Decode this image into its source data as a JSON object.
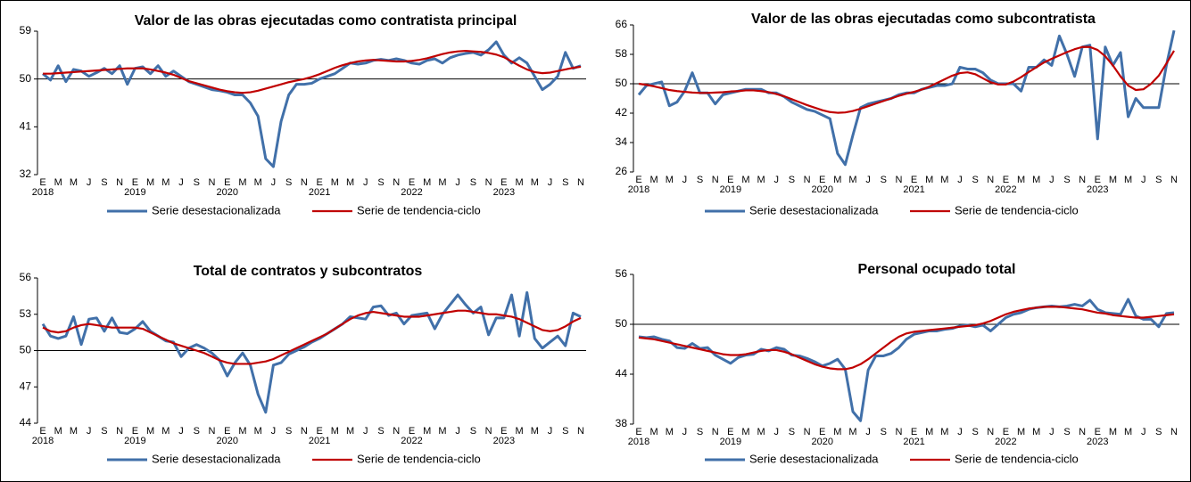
{
  "chart_data": [
    {
      "type": "line",
      "title": "Valor de las obras ejecutadas como contratista principal",
      "categories": [
        "E",
        null,
        "M",
        null,
        "M",
        null,
        "J",
        null,
        "S",
        null,
        "N",
        null,
        "E",
        null,
        "M",
        null,
        "M",
        null,
        "J",
        null,
        "S",
        null,
        "N",
        null,
        "E",
        null,
        "M",
        null,
        "M",
        null,
        "J",
        null,
        "S",
        null,
        "N",
        null,
        "E",
        null,
        "M",
        null,
        "M",
        null,
        "J",
        null,
        "S",
        null,
        "N",
        null,
        "E",
        null,
        "M",
        null,
        "M",
        null,
        "J",
        null,
        "S",
        null,
        "N",
        null,
        "E",
        null,
        "M",
        null,
        "M",
        null,
        "J",
        null,
        "S",
        null,
        "N"
      ],
      "years": [
        "2018",
        "2019",
        "2020",
        "2021",
        "2022",
        "2023"
      ],
      "ylim": [
        32,
        59
      ],
      "yticks": [
        32,
        41,
        50,
        59
      ],
      "baseline": 50,
      "series": [
        {
          "name": "Serie desestacionalizada",
          "color": "#4170A9",
          "values": [
            51,
            49.8,
            52.5,
            49.5,
            51.8,
            51.5,
            50.5,
            51.2,
            52,
            51,
            52.5,
            49,
            52,
            52.3,
            51,
            52.5,
            50.5,
            51.5,
            50.5,
            49.5,
            49,
            48.5,
            48,
            47.8,
            47.5,
            47,
            47,
            45.5,
            43,
            35,
            33.5,
            42,
            47,
            49,
            49,
            49.2,
            50,
            50.5,
            51,
            52,
            53,
            52.8,
            53,
            53.5,
            53.7,
            53.5,
            53.8,
            53.5,
            53,
            52.8,
            53.5,
            53.8,
            53,
            54,
            54.5,
            54.8,
            55,
            54.5,
            55.5,
            57,
            54.5,
            53,
            54,
            53,
            50.5,
            48,
            49,
            50.5,
            55,
            52,
            52.5
          ]
        },
        {
          "name": "Serie de tendencia-ciclo",
          "color": "#C00000",
          "values": [
            51,
            51,
            51.1,
            51.2,
            51.3,
            51.4,
            51.5,
            51.6,
            51.7,
            51.8,
            51.9,
            52,
            52,
            52,
            51.8,
            51.5,
            51.2,
            50.8,
            50.2,
            49.6,
            49.2,
            48.8,
            48.4,
            48,
            47.7,
            47.5,
            47.4,
            47.5,
            47.8,
            48.2,
            48.6,
            49,
            49.4,
            49.7,
            50,
            50.4,
            50.9,
            51.5,
            52.1,
            52.6,
            53,
            53.3,
            53.5,
            53.6,
            53.5,
            53.4,
            53.3,
            53.3,
            53.4,
            53.6,
            53.9,
            54.3,
            54.7,
            55,
            55.2,
            55.3,
            55.2,
            55.1,
            54.9,
            54.6,
            54.1,
            53.3,
            52.5,
            51.8,
            51.3,
            51.1,
            51.2,
            51.5,
            51.8,
            52.1,
            52.3
          ]
        }
      ]
    },
    {
      "type": "line",
      "title": "Valor de las obras ejecutadas como subcontratista",
      "categories": [
        "E",
        null,
        "M",
        null,
        "M",
        null,
        "J",
        null,
        "S",
        null,
        "N",
        null,
        "E",
        null,
        "M",
        null,
        "M",
        null,
        "J",
        null,
        "S",
        null,
        "N",
        null,
        "E",
        null,
        "M",
        null,
        "M",
        null,
        "J",
        null,
        "S",
        null,
        "N",
        null,
        "E",
        null,
        "M",
        null,
        "M",
        null,
        "J",
        null,
        "S",
        null,
        "N",
        null,
        "E",
        null,
        "M",
        null,
        "M",
        null,
        "J",
        null,
        "S",
        null,
        "N",
        null,
        "E",
        null,
        "M",
        null,
        "M",
        null,
        "J",
        null,
        "S",
        null,
        "N"
      ],
      "years": [
        "2018",
        "2019",
        "2020",
        "2021",
        "2022",
        "2023"
      ],
      "ylim": [
        26,
        66
      ],
      "yticks": [
        26,
        34,
        42,
        50,
        58,
        66
      ],
      "baseline": 50,
      "series": [
        {
          "name": "Serie desestacionalizada",
          "color": "#4170A9",
          "values": [
            47,
            49.5,
            50,
            50.5,
            44,
            45,
            48,
            53,
            47.5,
            47.5,
            44.5,
            47,
            47.5,
            48,
            48.5,
            48.5,
            48.5,
            47.5,
            47.5,
            46.5,
            45,
            44,
            43,
            42.5,
            41.5,
            40.5,
            31,
            28,
            36,
            43.5,
            44.5,
            45,
            45.5,
            46,
            47,
            47.5,
            47.5,
            48.5,
            49,
            49.5,
            49.5,
            50,
            54.5,
            54,
            54,
            53,
            51,
            50,
            50,
            50,
            48,
            54.5,
            54.5,
            56.5,
            55,
            63,
            58,
            52,
            60,
            60.5,
            35,
            60,
            55,
            58.5,
            41,
            46,
            43.5,
            43.5,
            43.5,
            55,
            64.5
          ]
        },
        {
          "name": "Serie de tendencia-ciclo",
          "color": "#C00000",
          "values": [
            50,
            49.7,
            49.3,
            48.8,
            48.3,
            48,
            47.8,
            47.6,
            47.5,
            47.5,
            47.6,
            47.7,
            47.9,
            48,
            48.2,
            48.2,
            48,
            47.7,
            47.2,
            46.6,
            45.8,
            45,
            44.2,
            43.5,
            42.8,
            42.3,
            42.1,
            42.2,
            42.6,
            43.2,
            43.9,
            44.6,
            45.3,
            46,
            46.7,
            47.3,
            47.8,
            48.4,
            49.2,
            50.2,
            51.2,
            52.2,
            52.9,
            53.1,
            52.6,
            51.5,
            50.4,
            49.8,
            49.8,
            50.6,
            51.8,
            53.2,
            54.5,
            55.8,
            56.8,
            57.7,
            58.6,
            59.4,
            60,
            60,
            59.2,
            57.5,
            55,
            52,
            49.5,
            48.3,
            48.5,
            50,
            52.2,
            55.5,
            59
          ]
        }
      ]
    },
    {
      "type": "line",
      "title": "Total de contratos y subcontratos",
      "categories": [
        "E",
        null,
        "M",
        null,
        "M",
        null,
        "J",
        null,
        "S",
        null,
        "N",
        null,
        "E",
        null,
        "M",
        null,
        "M",
        null,
        "J",
        null,
        "S",
        null,
        "N",
        null,
        "E",
        null,
        "M",
        null,
        "M",
        null,
        "J",
        null,
        "S",
        null,
        "N",
        null,
        "E",
        null,
        "M",
        null,
        "M",
        null,
        "J",
        null,
        "S",
        null,
        "N",
        null,
        "E",
        null,
        "M",
        null,
        "M",
        null,
        "J",
        null,
        "S",
        null,
        "N",
        null,
        "E",
        null,
        "M",
        null,
        "M",
        null,
        "J",
        null,
        "S",
        null,
        "N"
      ],
      "years": [
        "2018",
        "2019",
        "2020",
        "2021",
        "2022",
        "2023"
      ],
      "ylim": [
        44,
        56
      ],
      "yticks": [
        44,
        47,
        50,
        53,
        56
      ],
      "baseline": 50,
      "series": [
        {
          "name": "Serie desestacionalizada",
          "color": "#4170A9",
          "values": [
            52.2,
            51.2,
            51,
            51.2,
            52.8,
            50.5,
            52.6,
            52.7,
            51.6,
            52.7,
            51.5,
            51.4,
            51.8,
            52.4,
            51.6,
            51.2,
            50.8,
            50.7,
            49.5,
            50.2,
            50.5,
            50.2,
            49.8,
            49.2,
            47.9,
            49,
            49.8,
            48.8,
            46.4,
            44.9,
            48.8,
            49,
            49.7,
            50,
            50.3,
            50.7,
            51,
            51.4,
            51.8,
            52.2,
            52.8,
            52.7,
            52.6,
            53.6,
            53.7,
            52.9,
            53.1,
            52.2,
            52.9,
            53,
            53.1,
            51.8,
            53,
            53.8,
            54.6,
            53.8,
            53.1,
            53.6,
            51.3,
            52.7,
            52.7,
            54.6,
            51.2,
            54.8,
            51,
            50.2,
            50.7,
            51.2,
            50.4,
            53.1,
            52.8
          ]
        },
        {
          "name": "Serie de tendencia-ciclo",
          "color": "#C00000",
          "values": [
            51.9,
            51.6,
            51.5,
            51.6,
            51.9,
            52.1,
            52.2,
            52.1,
            52,
            51.9,
            51.9,
            51.9,
            51.9,
            51.8,
            51.5,
            51.2,
            50.9,
            50.6,
            50.4,
            50.2,
            50,
            49.8,
            49.5,
            49.2,
            49,
            48.9,
            48.9,
            48.9,
            49,
            49.1,
            49.3,
            49.6,
            49.9,
            50.2,
            50.5,
            50.8,
            51.1,
            51.4,
            51.8,
            52.2,
            52.6,
            52.9,
            53.1,
            53.2,
            53.1,
            53,
            52.9,
            52.8,
            52.8,
            52.8,
            52.9,
            53,
            53.1,
            53.2,
            53.3,
            53.3,
            53.2,
            53.1,
            53,
            53,
            52.9,
            52.8,
            52.6,
            52.3,
            52,
            51.7,
            51.6,
            51.7,
            52,
            52.4,
            52.7
          ]
        }
      ]
    },
    {
      "type": "line",
      "title": "Personal ocupado total",
      "categories": [
        "E",
        null,
        "M",
        null,
        "M",
        null,
        "J",
        null,
        "S",
        null,
        "N",
        null,
        "E",
        null,
        "M",
        null,
        "M",
        null,
        "J",
        null,
        "S",
        null,
        "N",
        null,
        "E",
        null,
        "M",
        null,
        "M",
        null,
        "J",
        null,
        "S",
        null,
        "N",
        null,
        "E",
        null,
        "M",
        null,
        "M",
        null,
        "J",
        null,
        "S",
        null,
        "N",
        null,
        "E",
        null,
        "M",
        null,
        "M",
        null,
        "J",
        null,
        "S",
        null,
        "N",
        null,
        "E",
        null,
        "M",
        null,
        "M",
        null,
        "J",
        null,
        "S",
        null,
        "N"
      ],
      "years": [
        "2018",
        "2019",
        "2020",
        "2021",
        "2022",
        "2023"
      ],
      "ylim": [
        38,
        56
      ],
      "yticks": [
        38,
        44,
        50,
        56
      ],
      "baseline": 50,
      "series": [
        {
          "name": "Serie desestacionalizada",
          "color": "#4170A9",
          "values": [
            48.5,
            48.4,
            48.5,
            48.2,
            48,
            47.2,
            47.1,
            47.7,
            47.1,
            47.2,
            46.3,
            45.8,
            45.3,
            46,
            46.3,
            46.4,
            47,
            46.8,
            47.2,
            47,
            46.3,
            46.2,
            45.9,
            45.5,
            45,
            45.3,
            45.8,
            44.6,
            39.5,
            38.4,
            44.5,
            46.2,
            46.2,
            46.5,
            47.2,
            48.2,
            48.8,
            49,
            49.2,
            49.2,
            49.4,
            49.5,
            49.8,
            49.9,
            49.7,
            49.9,
            49.2,
            50,
            50.8,
            51.2,
            51.4,
            51.8,
            52,
            52.1,
            52.2,
            52.1,
            52.2,
            52.4,
            52.2,
            52.9,
            51.8,
            51.4,
            51.3,
            51.2,
            53,
            51,
            50.6,
            50.6,
            49.7,
            51.3,
            51.4
          ]
        },
        {
          "name": "Serie de tendencia-ciclo",
          "color": "#C00000",
          "values": [
            48.4,
            48.3,
            48.2,
            48,
            47.8,
            47.6,
            47.4,
            47.2,
            47,
            46.8,
            46.6,
            46.4,
            46.3,
            46.3,
            46.4,
            46.6,
            46.8,
            46.9,
            46.9,
            46.7,
            46.4,
            46,
            45.6,
            45.2,
            44.9,
            44.7,
            44.6,
            44.6,
            44.8,
            45.2,
            45.8,
            46.5,
            47.2,
            47.9,
            48.5,
            48.9,
            49.1,
            49.2,
            49.3,
            49.4,
            49.5,
            49.6,
            49.7,
            49.8,
            49.9,
            50.1,
            50.4,
            50.8,
            51.2,
            51.5,
            51.7,
            51.9,
            52,
            52.1,
            52.1,
            52.1,
            52,
            51.9,
            51.8,
            51.6,
            51.4,
            51.3,
            51.1,
            51,
            50.9,
            50.8,
            50.8,
            50.9,
            51,
            51.1,
            51.2
          ]
        }
      ]
    }
  ]
}
